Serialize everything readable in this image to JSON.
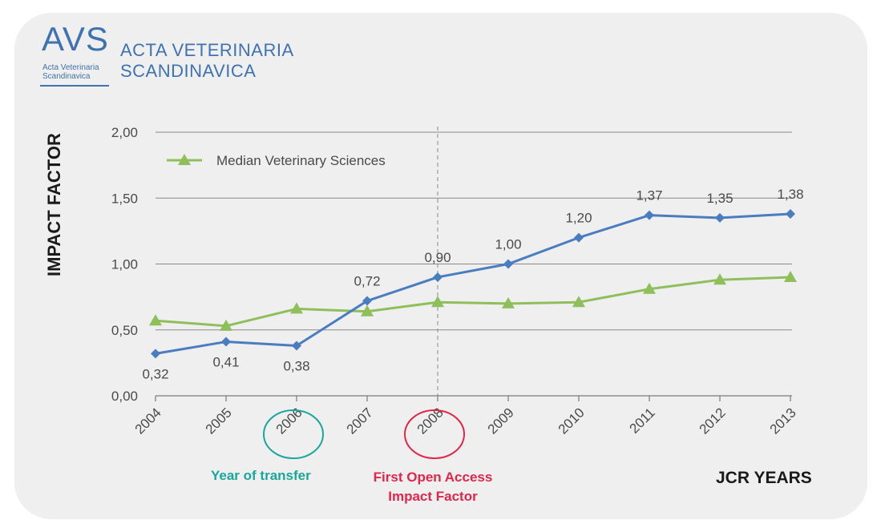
{
  "logo": {
    "abbr": "AVS",
    "sub_line1": "Acta Veterinaria",
    "sub_line2": "Scandinavica",
    "title_line1": "ACTA VETERINARIA",
    "title_line2": "SCANDINAVICA",
    "color": "#3f72b0"
  },
  "chart_data": {
    "type": "line",
    "ylabel": "IMPACT FACTOR",
    "xlabel": "JCR YEARS",
    "ylim": [
      0,
      2
    ],
    "yticks": [
      "0,00",
      "0,50",
      "1,00",
      "1,50",
      "2,00"
    ],
    "ytick_values": [
      0,
      0.5,
      1,
      1.5,
      2
    ],
    "grid": true,
    "categories": [
      "2004",
      "2005",
      "2006",
      "2007",
      "2008",
      "2009",
      "2010",
      "2011",
      "2012",
      "2013"
    ],
    "series": [
      {
        "name": "Acta Veterinaria Scandinavica",
        "marker": "diamond",
        "color": "#4a7cc0",
        "values": [
          0.32,
          0.41,
          0.38,
          0.72,
          0.9,
          1.0,
          1.2,
          1.37,
          1.35,
          1.38
        ],
        "labels": [
          "0,32",
          "0,41",
          "0,38",
          "0,72",
          "0,90",
          "1,00",
          "1,20",
          "1,37",
          "1,35",
          "1,38"
        ]
      },
      {
        "name": "Median Veterinary Sciences",
        "marker": "triangle",
        "color": "#8ebf5a",
        "values": [
          0.57,
          0.53,
          0.66,
          0.64,
          0.71,
          0.7,
          0.71,
          0.81,
          0.88,
          0.9
        ]
      }
    ],
    "legend": {
      "position": "top-left",
      "label": "Median Veterinary Sciences"
    },
    "vline_category": "2008",
    "annotations": [
      {
        "category": "2006",
        "text": "Year of transfer",
        "color": "#1aa79b"
      },
      {
        "category": "2008",
        "text_line1": "First Open Access",
        "text_line2": "Impact Factor",
        "color": "#e0264a"
      }
    ]
  }
}
